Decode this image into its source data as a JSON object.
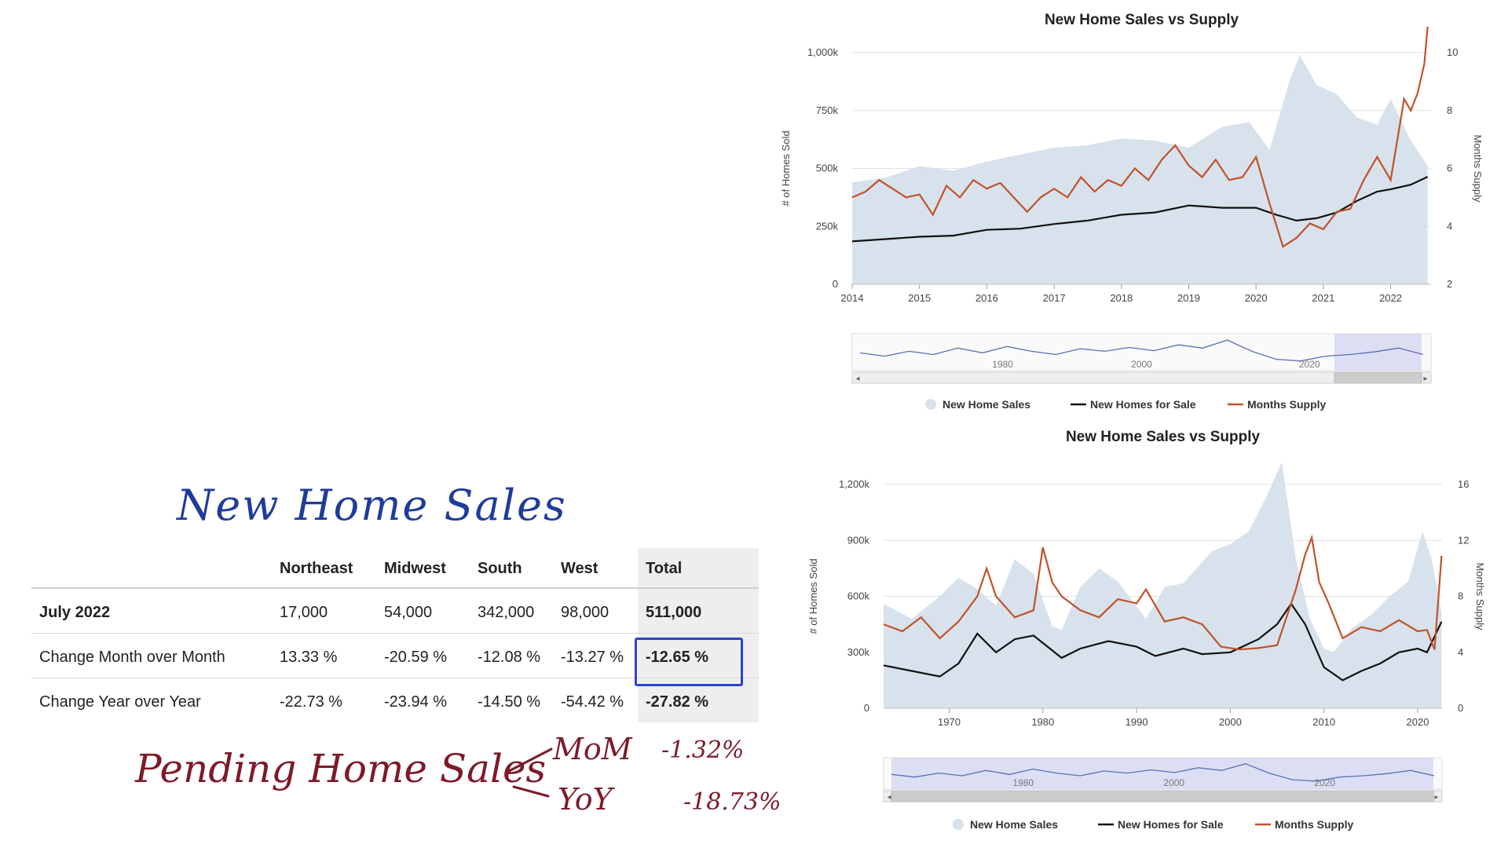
{
  "annotations": {
    "heading": "New Home Sales",
    "pending_label": "Pending Home Sales",
    "mom_label": "MoM",
    "mom_value": "-1.32%",
    "yoy_label": "YoY",
    "yoy_value": "-18.73%"
  },
  "table": {
    "headers": [
      "",
      "Northeast",
      "Midwest",
      "South",
      "West",
      "Total"
    ],
    "rows": [
      {
        "label": "July 2022",
        "values": [
          "17,000",
          "54,000",
          "342,000",
          "98,000"
        ],
        "total": "511,000"
      },
      {
        "label": "Change Month over Month",
        "values": [
          "13.33 %",
          "-20.59 %",
          "-12.08 %",
          "-13.27 %"
        ],
        "total": "-12.65 %"
      },
      {
        "label": "Change Year over Year",
        "values": [
          "-22.73 %",
          "-23.94 %",
          "-14.50 %",
          "-54.42 %"
        ],
        "total": "-27.82 %"
      }
    ]
  },
  "colors": {
    "sales_area": "#d8e2ec",
    "inventory_line": "#111111",
    "supply_line": "#c0532a",
    "navigator_line": "#5a6fb8"
  },
  "chart_data": [
    {
      "type": "area",
      "title": "New Home Sales vs Supply",
      "ylabel": "# of Homes Sold",
      "y2label": "Months Supply",
      "xlim": [
        2014,
        2022.6
      ],
      "ylim": [
        0,
        1000
      ],
      "y2lim": [
        2,
        10
      ],
      "x_ticks": [
        "2014",
        "2015",
        "2016",
        "2017",
        "2018",
        "2019",
        "2020",
        "2021",
        "2022"
      ],
      "y_ticks": [
        "0",
        "250k",
        "500k",
        "750k",
        "1,000k"
      ],
      "y2_ticks": [
        "2",
        "4",
        "6",
        "8",
        "10"
      ],
      "legend": [
        "New Home Sales",
        "New Homes for Sale",
        "Months Supply"
      ],
      "legend_position": "bottom",
      "navigator_ticks": [
        "1980",
        "2000",
        "2020"
      ],
      "series": [
        {
          "name": "New Home Sales",
          "axis": "left",
          "x": [
            2014,
            2014.5,
            2015,
            2015.5,
            2016,
            2016.5,
            2017,
            2017.5,
            2018,
            2018.5,
            2019,
            2019.5,
            2019.9,
            2020.2,
            2020.5,
            2020.65,
            2020.9,
            2021.2,
            2021.5,
            2021.8,
            2022,
            2022.3,
            2022.55
          ],
          "values": [
            440,
            460,
            510,
            490,
            530,
            560,
            590,
            600,
            630,
            620,
            590,
            680,
            700,
            580,
            880,
            990,
            860,
            820,
            720,
            690,
            800,
            620,
            511
          ]
        },
        {
          "name": "New Homes for Sale",
          "axis": "left",
          "x": [
            2014,
            2014.5,
            2015,
            2015.5,
            2016,
            2016.5,
            2017,
            2017.5,
            2018,
            2018.5,
            2019,
            2019.5,
            2020,
            2020.3,
            2020.6,
            2020.9,
            2021.2,
            2021.5,
            2021.8,
            2022,
            2022.3,
            2022.55
          ],
          "values": [
            185,
            195,
            205,
            210,
            235,
            240,
            260,
            275,
            300,
            310,
            340,
            330,
            330,
            300,
            275,
            285,
            310,
            360,
            400,
            410,
            430,
            464
          ]
        },
        {
          "name": "Months Supply",
          "axis": "right",
          "x": [
            2014,
            2014.2,
            2014.4,
            2014.6,
            2014.8,
            2015,
            2015.2,
            2015.4,
            2015.6,
            2015.8,
            2016,
            2016.2,
            2016.4,
            2016.6,
            2016.8,
            2017,
            2017.2,
            2017.4,
            2017.6,
            2017.8,
            2018,
            2018.2,
            2018.4,
            2018.6,
            2018.8,
            2019,
            2019.2,
            2019.4,
            2019.6,
            2019.8,
            2020,
            2020.2,
            2020.4,
            2020.6,
            2020.8,
            2021,
            2021.2,
            2021.4,
            2021.6,
            2021.8,
            2022,
            2022.1,
            2022.2,
            2022.3,
            2022.4,
            2022.5,
            2022.55
          ],
          "values": [
            5.0,
            5.2,
            5.6,
            5.3,
            5.0,
            5.1,
            4.4,
            5.4,
            5.0,
            5.6,
            5.3,
            5.5,
            5.0,
            4.5,
            5.0,
            5.3,
            5.0,
            5.7,
            5.2,
            5.6,
            5.4,
            6.0,
            5.6,
            6.3,
            6.8,
            6.1,
            5.7,
            6.3,
            5.6,
            5.7,
            6.4,
            4.8,
            3.3,
            3.6,
            4.1,
            3.9,
            4.5,
            4.6,
            5.6,
            6.4,
            5.6,
            7.0,
            8.4,
            8.0,
            8.6,
            9.6,
            10.9
          ]
        }
      ]
    },
    {
      "type": "area",
      "title": "New Home Sales vs Supply",
      "ylabel": "# of Homes Sold",
      "y2label": "Months Supply",
      "xlim": [
        1963,
        2022.6
      ],
      "ylim": [
        0,
        1200
      ],
      "y2lim": [
        0,
        16
      ],
      "x_ticks": [
        "1970",
        "1980",
        "1990",
        "2000",
        "2010",
        "2020"
      ],
      "y_ticks": [
        "0",
        "300k",
        "600k",
        "900k",
        "1,200k"
      ],
      "y2_ticks": [
        "0",
        "4",
        "8",
        "12",
        "16"
      ],
      "legend": [
        "New Home Sales",
        "New Homes for Sale",
        "Months Supply"
      ],
      "legend_position": "bottom",
      "navigator_ticks": [
        "1980",
        "2000",
        "2020"
      ],
      "series": [
        {
          "name": "New Home Sales",
          "axis": "left",
          "x": [
            1963,
            1966,
            1969,
            1971,
            1973,
            1975,
            1977,
            1979,
            1981,
            1982,
            1984,
            1986,
            1988,
            1991,
            1993,
            1995,
            1998,
            2000,
            2002,
            2004,
            2005.5,
            2007,
            2008.5,
            2010,
            2011,
            2013,
            2015,
            2017,
            2019,
            2020.5,
            2021.5,
            2022.55
          ],
          "values": [
            560,
            480,
            600,
            700,
            640,
            550,
            800,
            720,
            440,
            420,
            650,
            750,
            680,
            480,
            650,
            670,
            840,
            880,
            950,
            1150,
            1320,
            800,
            480,
            320,
            300,
            430,
            500,
            600,
            680,
            950,
            800,
            511
          ]
        },
        {
          "name": "New Homes for Sale",
          "axis": "left",
          "x": [
            1963,
            1966,
            1969,
            1971,
            1973,
            1975,
            1977,
            1979,
            1982,
            1984,
            1987,
            1990,
            1992,
            1995,
            1997,
            2000,
            2003,
            2005,
            2006.5,
            2008,
            2010,
            2012,
            2014,
            2016,
            2018,
            2020,
            2021,
            2022.55
          ],
          "values": [
            230,
            200,
            170,
            240,
            400,
            300,
            370,
            390,
            270,
            320,
            360,
            330,
            280,
            320,
            290,
            300,
            370,
            450,
            560,
            450,
            220,
            150,
            200,
            240,
            300,
            320,
            300,
            464
          ]
        },
        {
          "name": "Months Supply",
          "axis": "right",
          "x": [
            1963,
            1965,
            1967,
            1969,
            1971,
            1973,
            1974,
            1975,
            1977,
            1979,
            1980,
            1981,
            1982,
            1984,
            1986,
            1988,
            1990,
            1991,
            1993,
            1995,
            1997,
            1999,
            2001,
            2003,
            2005,
            2006,
            2007,
            2008,
            2008.7,
            2009.5,
            2010.5,
            2012,
            2014,
            2016,
            2018,
            2020,
            2021,
            2021.8,
            2022.55
          ],
          "values": [
            6,
            5.5,
            6.5,
            5,
            6.2,
            8,
            10,
            8,
            6.5,
            7,
            11.5,
            9,
            8,
            7,
            6.5,
            7.8,
            7.5,
            8.5,
            6.2,
            6.5,
            6.0,
            4.4,
            4.2,
            4.3,
            4.5,
            6.5,
            8.5,
            11,
            12.2,
            9,
            7.5,
            5.0,
            5.8,
            5.5,
            6.3,
            5.5,
            5.6,
            4.2,
            10.9
          ]
        }
      ]
    }
  ]
}
